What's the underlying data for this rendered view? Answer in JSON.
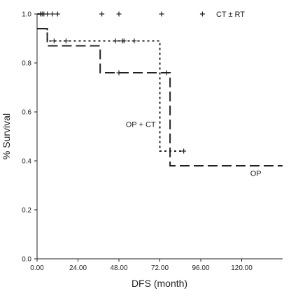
{
  "chart_data": {
    "type": "line",
    "subtype": "kaplan-meier survival curve",
    "title": "",
    "xlabel": "DFS (month)",
    "ylabel": "% Survival",
    "xlim": [
      0,
      144
    ],
    "ylim": [
      0,
      1.0
    ],
    "x_ticks": [
      0,
      24,
      48,
      72,
      96,
      120
    ],
    "x_tick_labels": [
      "0.00",
      "24.00",
      "48.00",
      "72.00",
      "96.00",
      "120.00"
    ],
    "y_ticks": [
      0,
      0.2,
      0.4,
      0.6,
      0.8,
      1.0
    ],
    "y_tick_labels": [
      "0.0",
      "0.2",
      "0.4",
      "0.6",
      "0.8",
      "1.0"
    ],
    "grid": false,
    "series": [
      {
        "name": "CT ± RT",
        "style": "solid",
        "color": "#222222",
        "steps": [
          [
            0,
            1.0
          ],
          [
            3,
            1.0
          ]
        ],
        "censored": [
          [
            2,
            1.0
          ],
          [
            3,
            1.0
          ],
          [
            4,
            1.0
          ],
          [
            6,
            1.0
          ],
          [
            9,
            1.0
          ],
          [
            12,
            1.0
          ],
          [
            38,
            1.0
          ],
          [
            48,
            1.0
          ],
          [
            73,
            1.0
          ],
          [
            97,
            1.0
          ]
        ]
      },
      {
        "name": "OP + CT",
        "style": "dotted",
        "color": "#222222",
        "steps": [
          [
            0,
            0.94
          ],
          [
            6,
            0.94
          ],
          [
            6,
            0.89
          ],
          [
            72,
            0.89
          ],
          [
            72,
            0.44
          ],
          [
            86,
            0.44
          ]
        ],
        "censored": [
          [
            10,
            0.89
          ],
          [
            17,
            0.89
          ],
          [
            46,
            0.89
          ],
          [
            50,
            0.89
          ],
          [
            51,
            0.89
          ],
          [
            57,
            0.89
          ],
          [
            86,
            0.44
          ]
        ]
      },
      {
        "name": "OP",
        "style": "dashed",
        "color": "#222222",
        "steps": [
          [
            0,
            0.94
          ],
          [
            6,
            0.94
          ],
          [
            6,
            0.87
          ],
          [
            37,
            0.87
          ],
          [
            37,
            0.76
          ],
          [
            78,
            0.76
          ],
          [
            78,
            0.38
          ],
          [
            144,
            0.38
          ]
        ],
        "censored": [
          [
            48,
            0.76
          ],
          [
            76,
            0.76
          ]
        ]
      }
    ],
    "annotations": [
      {
        "text": "CT ± RT",
        "x": 105,
        "y": 1.0
      },
      {
        "text": "OP + CT",
        "x": 52,
        "y": 0.55
      },
      {
        "text": "OP",
        "x": 125,
        "y": 0.35
      }
    ]
  }
}
